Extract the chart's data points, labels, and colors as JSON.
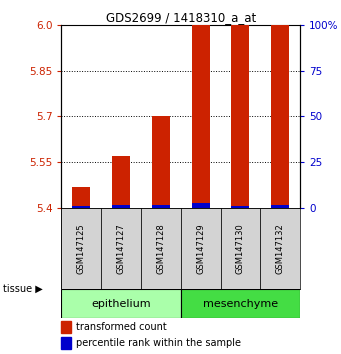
{
  "title": "GDS2699 / 1418310_a_at",
  "samples": [
    "GSM147125",
    "GSM147127",
    "GSM147128",
    "GSM147129",
    "GSM147130",
    "GSM147132"
  ],
  "red_values": [
    5.47,
    5.57,
    5.7,
    6.0,
    6.0,
    6.0
  ],
  "blue_values_pct": [
    3,
    4,
    4,
    7,
    3,
    5
  ],
  "ylim_left": [
    5.4,
    6.0
  ],
  "ylim_right": [
    0,
    100
  ],
  "yticks_left": [
    5.4,
    5.55,
    5.7,
    5.85,
    6.0
  ],
  "yticks_right": [
    0,
    25,
    50,
    75,
    100
  ],
  "ytick_labels_right": [
    "0",
    "25",
    "50",
    "75",
    "100%"
  ],
  "bar_width": 0.45,
  "red_color": "#cc2200",
  "blue_color": "#0000cc",
  "bg_color": "#ffffff",
  "left_tick_color": "#cc2200",
  "right_tick_color": "#0000cc",
  "sample_box_color": "#d3d3d3",
  "epi_color": "#aaffaa",
  "mes_color": "#44dd44",
  "legend_items": [
    {
      "label": "transformed count",
      "color": "#cc2200"
    },
    {
      "label": "percentile rank within the sample",
      "color": "#0000cc"
    }
  ]
}
